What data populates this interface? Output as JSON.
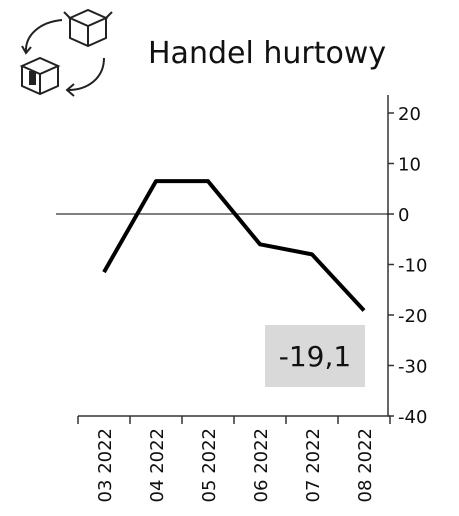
{
  "chart_data": {
    "type": "line",
    "title": "Handel hurtowy",
    "categories": [
      "03 2022",
      "04 2022",
      "05 2022",
      "06 2022",
      "07 2022",
      "08 2022"
    ],
    "values": [
      -11.5,
      6.5,
      6.5,
      -6,
      -8,
      -19.1
    ],
    "value_labels": [
      null,
      null,
      null,
      null,
      null,
      "-19,1"
    ],
    "color": "#000000",
    "ylim": [
      -40,
      20
    ],
    "yticks": [
      20,
      10,
      0,
      -10,
      -20,
      -30,
      -40
    ]
  }
}
